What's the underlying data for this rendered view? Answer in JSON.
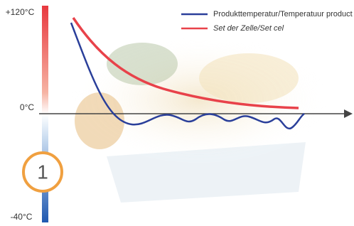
{
  "axis": {
    "labels": [
      "+120°C",
      "0°C",
      "-40°C"
    ]
  },
  "legend": {
    "items": [
      {
        "label": "Produkttemperatur/Temperatuur product",
        "color": "#2a3f9a"
      },
      {
        "label": "Set der Zelle/Set cel",
        "color": "#e8424a"
      }
    ]
  },
  "step": "1"
}
